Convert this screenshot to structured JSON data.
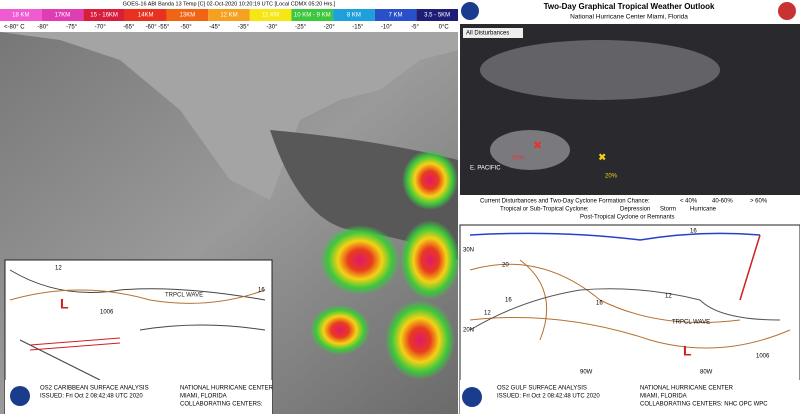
{
  "left_panel": {
    "header": "GOES-16 ABI Banda 13 Temp [C] 02-Oct-2020 10:20:19 UTC [Local CDMX 05:20 Hrs.]",
    "scale": [
      {
        "label": "18 KM",
        "color": "#f05ad2"
      },
      {
        "label": "17KM",
        "color": "#e03cb4"
      },
      {
        "label": "15 - 16KM",
        "color": "#d81e3c"
      },
      {
        "label": "14KM",
        "color": "#e8321e"
      },
      {
        "label": "13KM",
        "color": "#f06414"
      },
      {
        "label": "12 KM",
        "color": "#f5a01e"
      },
      {
        "label": "11 KM",
        "color": "#f5e614"
      },
      {
        "label": "10 KM - 9 KM",
        "color": "#3cc83c"
      },
      {
        "label": "8 KM",
        "color": "#1ea0dc"
      },
      {
        "label": "7 KM",
        "color": "#2850c8"
      },
      {
        "label": "3.5 - 5KM",
        "color": "#1e1e78"
      }
    ],
    "temps": [
      "<-80° C",
      "-80°",
      "-75°",
      "-70°",
      "-65°",
      "-60° -55°",
      "-50°",
      "-45°",
      "-35°",
      "-30°",
      "-25°",
      "-20°",
      "-15°",
      "-10°",
      "-5°",
      "0°C"
    ],
    "inset": {
      "labels": [
        "12",
        "16",
        "TRPCL WAVE",
        "1006",
        "L"
      ],
      "footer_title": "OS2 CARIBBEAN SURFACE ANALYSIS",
      "footer_issued": "ISSUED: Fri Oct 2 08:42:48 UTC 2020",
      "footer_center": "NATIONAL HURRICANE CENTER",
      "footer_city": "MIAMI, FLORIDA",
      "footer_collab": "COLLABORATING CENTERS:"
    }
  },
  "right_panel": {
    "title": "Two-Day Graphical Tropical Weather Outlook",
    "subtitle": "National Hurricane Center  Miami, Florida",
    "tab": "All Disturbances",
    "region": "E. PACIFIC",
    "pct_red": "90%",
    "pct_yellow": "20%",
    "legend": {
      "heading": "Current Disturbances and Two-Day Cyclone Formation Chance:",
      "low": "< 40%",
      "mid": "40-60%",
      "high": "> 60%",
      "cyclone_heading": "Tropical or Sub-Tropical Cyclone:",
      "depression": "Depression",
      "storm": "Storm",
      "hurricane": "Hurricane",
      "post": "Post-Tropical Cyclone or Remnants"
    },
    "gulf": {
      "labels": [
        "16",
        "20",
        "16",
        "12",
        "12",
        "16",
        "TRPCL WAVE",
        "1006",
        "L"
      ],
      "axis": [
        "30N",
        "20N",
        "90W",
        "80W"
      ],
      "footer_title": "OS2 GULF SURFACE ANALYSIS",
      "footer_issued": "ISSUED: Fri Oct 2 08:42:48 UTC 2020",
      "footer_center": "NATIONAL HURRICANE CENTER",
      "footer_city": "MIAMI, FLORIDA",
      "footer_collab": "COLLABORATING CENTERS: NHC OPC WPC"
    }
  }
}
